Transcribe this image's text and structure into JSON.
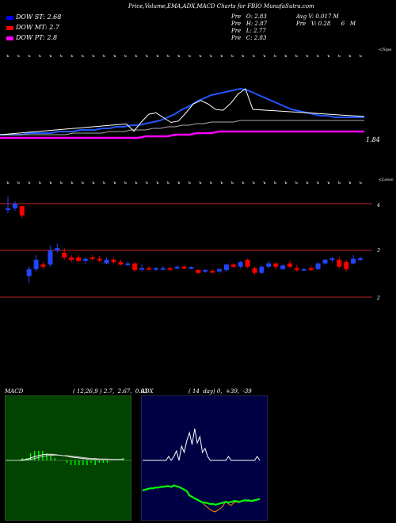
{
  "header": {
    "title": "Price,Volume,EMA,ADX,MACD Charts for FBIO MunafaSutra.com",
    "legend": [
      {
        "label": "DOW ST: 2.68",
        "color": "#0000ff"
      },
      {
        "label": "DOW MT: 2.7",
        "color": "#ff0000"
      },
      {
        "label": "DOW PT: 2.8",
        "color": "#ff00ff"
      }
    ],
    "stats_col1": [
      "Pre   O: 2.83",
      "Pre   H: 2.87",
      "Pre   L: 2.77",
      "Pre   C: 2.83"
    ],
    "stats_col2": [
      "Avg V: 0.017 M",
      "Pre   V: 0.28      6   M"
    ]
  },
  "colors": {
    "ema_fast": "#2255ff",
    "ema_pink": "#ff00ff",
    "price_line": "#ffffff",
    "ema_grey": "#aaaaaa",
    "up_candle": "#2244ff",
    "down_candle": "#ff0000",
    "hline": "#ff3333",
    "macd_bg": "#004400",
    "macd_hist": "#00ff00",
    "adx_bg": "#000044",
    "adx_green": "#00ff00",
    "adx_orange": "#ff8800"
  },
  "labels": {
    "upper_top_right": "<Topo",
    "upper_price_level": "1.84",
    "lower_top_right": "<Losso",
    "price_levels": [
      "4",
      "3",
      "2"
    ]
  },
  "chart_data": [
    {
      "type": "line",
      "title": "Price,Volume,EMA,ADX,MACD Charts for FBIO MunafaSutra.com",
      "series": [
        {
          "name": "DOW ST: 2.68",
          "values": [
            1.84,
            1.84,
            1.84,
            1.84,
            1.85,
            1.85,
            1.85,
            1.85,
            1.86,
            1.86,
            1.86,
            1.87,
            1.87,
            1.87,
            1.88,
            1.88,
            1.89,
            1.89,
            1.9,
            1.9,
            1.91,
            1.92,
            1.93,
            1.95,
            1.97,
            2.0,
            2.02,
            2.05,
            2.07,
            2.09,
            2.1,
            2.11,
            2.12,
            2.13,
            2.12,
            2.1,
            2.08,
            2.06,
            2.04,
            2.02,
            2.0,
            1.99,
            1.98,
            1.97,
            1.96,
            1.96,
            1.95,
            1.95,
            1.95,
            1.95,
            1.95
          ]
        },
        {
          "name": "DOW MT: 2.7",
          "values": [
            1.84,
            1.84,
            1.84,
            1.84,
            1.84,
            1.84,
            1.84,
            1.84,
            1.84,
            1.84,
            1.85,
            1.85,
            1.85,
            1.85,
            1.85,
            1.86,
            1.86,
            1.86,
            1.87,
            1.87,
            1.87,
            1.88,
            1.88,
            1.89,
            1.89,
            1.9,
            1.9,
            1.91,
            1.91,
            1.92,
            1.92,
            1.92,
            1.92,
            1.93,
            1.93,
            1.93,
            1.93,
            1.93,
            1.93,
            1.93,
            1.93,
            1.93,
            1.93,
            1.93,
            1.93,
            1.93,
            1.93,
            1.93,
            1.93,
            1.93,
            1.93
          ]
        },
        {
          "name": "DOW PT: 2.8",
          "values": [
            1.82,
            1.82,
            1.82,
            1.82,
            1.82,
            1.82,
            1.82,
            1.82,
            1.82,
            1.82,
            1.82,
            1.82,
            1.82,
            1.82,
            1.82,
            1.82,
            1.82,
            1.82,
            1.82,
            1.82,
            1.83,
            1.83,
            1.83,
            1.83,
            1.84,
            1.84,
            1.84,
            1.85,
            1.85,
            1.85,
            1.86,
            1.86,
            1.86,
            1.86,
            1.86,
            1.86,
            1.86,
            1.86,
            1.86,
            1.86,
            1.86,
            1.86,
            1.86,
            1.86,
            1.86,
            1.86,
            1.86,
            1.86,
            1.86,
            1.86,
            1.86
          ]
        }
      ]
    },
    {
      "type": "candlestick",
      "price_levels": [
        4,
        3,
        2
      ],
      "candles": [
        {
          "o": 3.9,
          "h": 4.15,
          "l": 3.8,
          "c": 3.9
        },
        {
          "o": 3.9,
          "h": 4.05,
          "l": 3.85,
          "c": 4.0
        },
        {
          "o": 3.95,
          "h": 3.95,
          "l": 3.7,
          "c": 3.75
        },
        {
          "o": 2.45,
          "h": 2.65,
          "l": 2.3,
          "c": 2.6
        },
        {
          "o": 2.6,
          "h": 2.9,
          "l": 2.55,
          "c": 2.8
        },
        {
          "o": 2.7,
          "h": 2.75,
          "l": 2.6,
          "c": 2.65
        },
        {
          "o": 2.7,
          "h": 3.1,
          "l": 2.65,
          "c": 3.0
        },
        {
          "o": 3.0,
          "h": 3.15,
          "l": 2.95,
          "c": 3.05
        },
        {
          "o": 2.95,
          "h": 3.05,
          "l": 2.8,
          "c": 2.85
        },
        {
          "o": 2.85,
          "h": 2.9,
          "l": 2.75,
          "c": 2.8
        },
        {
          "o": 2.85,
          "h": 2.9,
          "l": 2.75,
          "c": 2.78
        },
        {
          "o": 2.78,
          "h": 2.85,
          "l": 2.7,
          "c": 2.82
        },
        {
          "o": 2.85,
          "h": 2.9,
          "l": 2.78,
          "c": 2.82
        },
        {
          "o": 2.82,
          "h": 2.88,
          "l": 2.75,
          "c": 2.8
        },
        {
          "o": 2.72,
          "h": 2.85,
          "l": 2.7,
          "c": 2.8
        },
        {
          "o": 2.8,
          "h": 2.85,
          "l": 2.72,
          "c": 2.75
        },
        {
          "o": 2.75,
          "h": 2.8,
          "l": 2.68,
          "c": 2.7
        },
        {
          "o": 2.72,
          "h": 2.76,
          "l": 2.68,
          "c": 2.72
        },
        {
          "o": 2.72,
          "h": 2.75,
          "l": 2.55,
          "c": 2.58
        },
        {
          "o": 2.6,
          "h": 2.7,
          "l": 2.55,
          "c": 2.62
        },
        {
          "o": 2.62,
          "h": 2.66,
          "l": 2.58,
          "c": 2.6
        },
        {
          "o": 2.6,
          "h": 2.65,
          "l": 2.57,
          "c": 2.62
        },
        {
          "o": 2.6,
          "h": 2.66,
          "l": 2.58,
          "c": 2.62
        },
        {
          "o": 2.62,
          "h": 2.65,
          "l": 2.57,
          "c": 2.6
        },
        {
          "o": 2.62,
          "h": 2.68,
          "l": 2.6,
          "c": 2.65
        },
        {
          "o": 2.65,
          "h": 2.68,
          "l": 2.6,
          "c": 2.63
        },
        {
          "o": 2.62,
          "h": 2.66,
          "l": 2.6,
          "c": 2.64
        },
        {
          "o": 2.58,
          "h": 2.6,
          "l": 2.5,
          "c": 2.52
        },
        {
          "o": 2.55,
          "h": 2.6,
          "l": 2.52,
          "c": 2.58
        },
        {
          "o": 2.56,
          "h": 2.6,
          "l": 2.52,
          "c": 2.55
        },
        {
          "o": 2.55,
          "h": 2.62,
          "l": 2.52,
          "c": 2.6
        },
        {
          "o": 2.58,
          "h": 2.72,
          "l": 2.55,
          "c": 2.7
        },
        {
          "o": 2.7,
          "h": 2.72,
          "l": 2.62,
          "c": 2.65
        },
        {
          "o": 2.65,
          "h": 2.78,
          "l": 2.62,
          "c": 2.75
        },
        {
          "o": 2.8,
          "h": 2.82,
          "l": 2.62,
          "c": 2.65
        },
        {
          "o": 2.62,
          "h": 2.65,
          "l": 2.48,
          "c": 2.52
        },
        {
          "o": 2.52,
          "h": 2.68,
          "l": 2.5,
          "c": 2.65
        },
        {
          "o": 2.65,
          "h": 2.78,
          "l": 2.62,
          "c": 2.72
        },
        {
          "o": 2.72,
          "h": 2.75,
          "l": 2.6,
          "c": 2.65
        },
        {
          "o": 2.6,
          "h": 2.7,
          "l": 2.58,
          "c": 2.68
        },
        {
          "o": 2.72,
          "h": 2.78,
          "l": 2.62,
          "c": 2.65
        },
        {
          "o": 2.62,
          "h": 2.68,
          "l": 2.55,
          "c": 2.58
        },
        {
          "o": 2.58,
          "h": 2.62,
          "l": 2.56,
          "c": 2.6
        },
        {
          "o": 2.62,
          "h": 2.66,
          "l": 2.56,
          "c": 2.58
        },
        {
          "o": 2.6,
          "h": 2.75,
          "l": 2.58,
          "c": 2.72
        },
        {
          "o": 2.72,
          "h": 2.82,
          "l": 2.7,
          "c": 2.8
        },
        {
          "o": 2.8,
          "h": 2.86,
          "l": 2.75,
          "c": 2.83
        },
        {
          "o": 2.8,
          "h": 2.86,
          "l": 2.62,
          "c": 2.65
        },
        {
          "o": 2.75,
          "h": 2.8,
          "l": 2.55,
          "c": 2.6
        },
        {
          "o": 2.72,
          "h": 2.9,
          "l": 2.7,
          "c": 2.82
        },
        {
          "o": 2.83,
          "h": 2.87,
          "l": 2.77,
          "c": 2.83
        }
      ]
    },
    {
      "type": "line",
      "title": "MACD",
      "label_left": "MACD",
      "label_right": "( 12,26,9 ) 2.7,  2.67,  0.03",
      "series": [
        {
          "name": "MACD",
          "values": [
            0,
            0,
            0,
            0,
            0.01,
            0.02,
            0.05,
            0.08,
            0.1,
            0.12,
            0.13,
            0.13,
            0.12,
            0.11,
            0.1,
            0.09,
            0.07,
            0.06,
            0.05,
            0.04,
            0.03,
            0.03,
            0.02,
            0.02,
            0.02,
            0.02,
            0.02,
            0.02,
            0.02,
            0.03
          ]
        },
        {
          "name": "Signal",
          "values": [
            0,
            0,
            0,
            0,
            0,
            0.01,
            0.02,
            0.04,
            0.06,
            0.08,
            0.1,
            0.11,
            0.11,
            0.11,
            0.1,
            0.1,
            0.09,
            0.08,
            0.07,
            0.06,
            0.05,
            0.04,
            0.04,
            0.03,
            0.03,
            0.03,
            0.02,
            0.02,
            0.02,
            0.02
          ]
        }
      ]
    },
    {
      "type": "line",
      "title": "ADX",
      "label_left": "ADX",
      "label_right": "( 14  day) 0,  +39,  -39",
      "series": [
        {
          "name": "ADX",
          "values": [
            0,
            0,
            0,
            0,
            0,
            0,
            0,
            0,
            0,
            0,
            5,
            0,
            5,
            12,
            0,
            18,
            10,
            25,
            35,
            20,
            40,
            22,
            30,
            10,
            15,
            5,
            0,
            0,
            0,
            0,
            0,
            0,
            0,
            5,
            0,
            0,
            0,
            0,
            0,
            0,
            0,
            0,
            0,
            0,
            5,
            0
          ]
        },
        {
          "name": "+DI",
          "values": [
            39,
            40,
            41,
            42,
            42,
            43,
            43,
            44,
            44,
            45,
            45,
            44,
            46,
            45,
            44,
            42,
            40,
            38,
            32,
            30,
            28,
            26,
            24,
            22,
            22,
            21,
            20,
            20,
            19,
            20,
            21,
            22,
            23,
            22,
            23,
            24,
            24,
            23,
            24,
            25,
            25,
            25,
            24,
            25,
            26,
            27
          ]
        },
        {
          "name": "-DI",
          "values": [
            39,
            40,
            41,
            42,
            42,
            43,
            43,
            44,
            44,
            45,
            45,
            44,
            46,
            45,
            44,
            42,
            40,
            38,
            32,
            30,
            28,
            26,
            24,
            22,
            18,
            15,
            12,
            10,
            9,
            12,
            14,
            18,
            24,
            20,
            18,
            22,
            23,
            22,
            24,
            25,
            24,
            24,
            25,
            26,
            26,
            27
          ]
        }
      ]
    }
  ]
}
